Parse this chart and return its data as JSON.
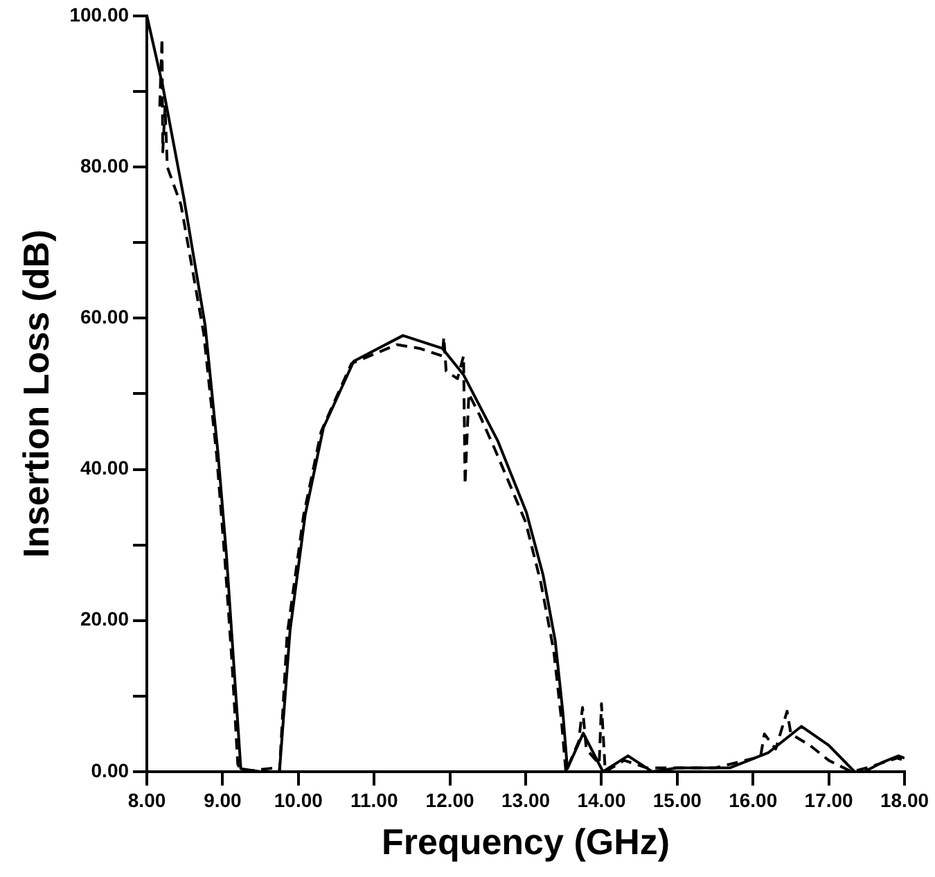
{
  "chart_data": {
    "type": "line",
    "xlabel": "Frequency (GHz)",
    "ylabel": "Insertion Loss (dB)",
    "xlim": [
      8,
      18
    ],
    "ylim": [
      0,
      100
    ],
    "xticks": [
      {
        "value": 8,
        "label": "8.00"
      },
      {
        "value": 9,
        "label": "9.00"
      },
      {
        "value": 10,
        "label": "10.00"
      },
      {
        "value": 11,
        "label": "11.00"
      },
      {
        "value": 12,
        "label": "12.00"
      },
      {
        "value": 13,
        "label": "13.00"
      },
      {
        "value": 14,
        "label": "14.00"
      },
      {
        "value": 15,
        "label": "15.00"
      },
      {
        "value": 16,
        "label": "16.00"
      },
      {
        "value": 17,
        "label": "17.00"
      },
      {
        "value": 18,
        "label": "18.00"
      }
    ],
    "yticks": [
      {
        "value": 0,
        "label": "0.00"
      },
      {
        "value": 10,
        "label": null
      },
      {
        "value": 20,
        "label": "20.00"
      },
      {
        "value": 30,
        "label": null
      },
      {
        "value": 40,
        "label": "40.00"
      },
      {
        "value": 50,
        "label": null
      },
      {
        "value": 60,
        "label": "60.00"
      },
      {
        "value": 70,
        "label": null
      },
      {
        "value": 80,
        "label": "80.00"
      },
      {
        "value": 90,
        "label": null
      },
      {
        "value": 100,
        "label": "100.00"
      }
    ],
    "grid": false,
    "legend": false,
    "marker": "none",
    "series": [
      {
        "color": "#000000",
        "line_style": "solid",
        "x": [
          8,
          8.21,
          8.49,
          8.77,
          8.94,
          9.05,
          9.14,
          9.24,
          9.5,
          9.75,
          9.89,
          10.09,
          10.33,
          10.73,
          11.38,
          11.9,
          12.18,
          12.63,
          13.01,
          13.23,
          13.39,
          13.49,
          13.55,
          13.76,
          14.02,
          14.35,
          14.67,
          15,
          15.69,
          16.2,
          16.64,
          17,
          17.34,
          17.47,
          17.7,
          17.92,
          18
        ],
        "values": [
          100,
          90.7,
          75.8,
          59,
          42,
          28.7,
          15.3,
          0.4,
          0,
          0,
          18.7,
          34,
          45.5,
          54.3,
          57.7,
          56,
          52.5,
          43.8,
          34.3,
          26,
          17.3,
          7.9,
          0.4,
          5.1,
          0,
          2.1,
          0,
          0.5,
          0.5,
          2.5,
          6,
          3.5,
          0,
          0,
          1.2,
          2.1,
          1.8
        ]
      },
      {
        "color": "#000000",
        "line_style": "dashed",
        "x": [
          8.17,
          8.2,
          8.21,
          8.24,
          8.27,
          8.45,
          8.75,
          8.92,
          9.03,
          9.12,
          9.2,
          9.25,
          9.7,
          9.75,
          9.85,
          10.07,
          10.3,
          10.7,
          11.3,
          11.6,
          11.9,
          11.92,
          11.95,
          12.1,
          12.18,
          12.2,
          12.25,
          12.4,
          12.6,
          13,
          13.2,
          13.37,
          13.47,
          13.53,
          13.7,
          13.75,
          13.8,
          13.97,
          14,
          14.05,
          14.3,
          14.6,
          15.5,
          16.1,
          16.15,
          16.3,
          16.45,
          16.5,
          16.75,
          17,
          17.3,
          17.5,
          17.9,
          18
        ],
        "values": [
          88,
          97,
          82,
          88,
          80,
          75,
          58,
          42,
          28,
          15,
          1,
          0,
          0.5,
          0,
          18,
          34,
          45,
          54,
          56.5,
          56,
          55,
          57.5,
          53,
          52,
          55,
          38,
          50,
          47,
          42.5,
          33,
          25,
          16,
          7,
          0,
          4,
          8.5,
          3,
          1,
          9,
          0,
          1.5,
          0.5,
          0.5,
          2,
          5,
          3,
          8,
          5,
          3.5,
          1.5,
          0,
          0.5,
          1.8,
          1.5
        ]
      }
    ]
  }
}
